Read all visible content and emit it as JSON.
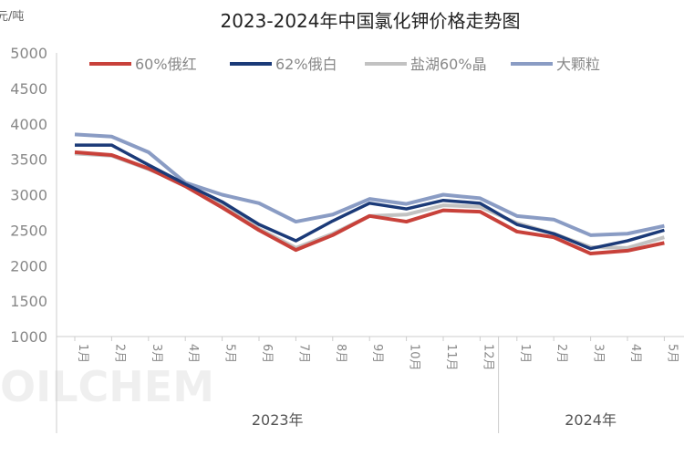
{
  "chart_data": {
    "type": "line",
    "title": "2023-2024年中国氯化钾价格走势图",
    "ylabel": "元/吨",
    "ylim": [
      1000,
      5000
    ],
    "yticks": [
      1000,
      1500,
      2000,
      2500,
      3000,
      3500,
      4000,
      4500,
      5000
    ],
    "categories": [
      "1月",
      "2月",
      "3月",
      "4月",
      "5月",
      "6月",
      "7月",
      "8月",
      "9月",
      "10月",
      "11月",
      "12月",
      "1月",
      "2月",
      "3月",
      "4月",
      "5月"
    ],
    "groups": [
      {
        "label": "2023年",
        "count": 12
      },
      {
        "label": "2024年",
        "count": 5
      }
    ],
    "legend": "top",
    "grid": false,
    "watermark": "OILCHEM",
    "series": [
      {
        "name": "60%俄红",
        "color": "#c8413a",
        "values": [
          3600,
          3560,
          3370,
          3120,
          2820,
          2500,
          2220,
          2430,
          2700,
          2620,
          2780,
          2760,
          2480,
          2400,
          2170,
          2210,
          2320
        ]
      },
      {
        "name": "62%俄白",
        "color": "#1b3a78",
        "values": [
          3700,
          3700,
          3420,
          3150,
          2900,
          2580,
          2350,
          2630,
          2880,
          2800,
          2920,
          2880,
          2580,
          2450,
          2240,
          2350,
          2500
        ]
      },
      {
        "name": "盐湖60%晶",
        "color": "#c2c2c2",
        "values": [
          3580,
          3550,
          3360,
          3150,
          2870,
          2520,
          2250,
          2450,
          2700,
          2720,
          2850,
          2830,
          2600,
          2450,
          2260,
          2250,
          2400
        ]
      },
      {
        "name": "大颗粒",
        "color": "#8a9cc4",
        "values": [
          3850,
          3820,
          3600,
          3170,
          3000,
          2880,
          2620,
          2720,
          2940,
          2870,
          3000,
          2950,
          2700,
          2650,
          2430,
          2450,
          2560
        ]
      }
    ]
  }
}
